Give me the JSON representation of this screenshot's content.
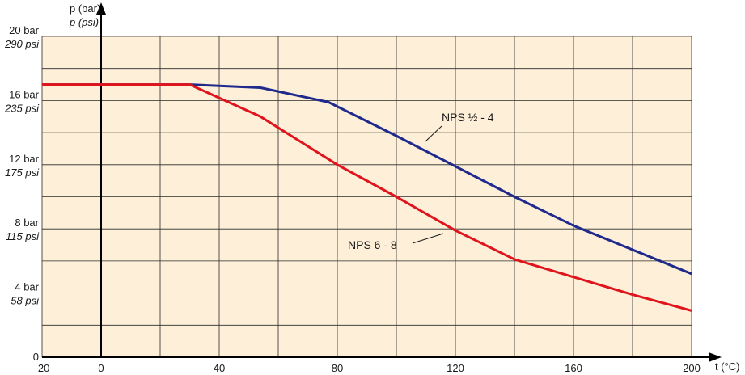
{
  "chart_data": {
    "type": "line",
    "xlabel": "t (°C)",
    "ylabel": "p (bar)",
    "ylabel2": "p (psi)",
    "xlim": [
      -20,
      200
    ],
    "ylim": [
      0,
      20
    ],
    "grid": true,
    "x_grid_step": 20,
    "y_grid_step": 2,
    "x_ticks": [
      {
        "value": -20,
        "label": "-20"
      },
      {
        "value": 0,
        "label": "0"
      },
      {
        "value": 40,
        "label": "40"
      },
      {
        "value": 80,
        "label": "80"
      },
      {
        "value": 120,
        "label": "120"
      },
      {
        "value": 160,
        "label": "160"
      },
      {
        "value": 200,
        "label": "200"
      }
    ],
    "y_ticks": [
      {
        "value": 0,
        "label": "0",
        "label2": ""
      },
      {
        "value": 4,
        "label": "4 bar",
        "label2": "58 psi"
      },
      {
        "value": 8,
        "label": "8 bar",
        "label2": "115 psi"
      },
      {
        "value": 12,
        "label": "12 bar",
        "label2": "175 psi"
      },
      {
        "value": 16,
        "label": "16 bar",
        "label2": "235 psi"
      },
      {
        "value": 20,
        "label": "20 bar",
        "label2": "290 psi"
      }
    ],
    "series": [
      {
        "name": "NPS ½ - 4",
        "color": "#1f2a8c",
        "x": [
          -20,
          30,
          54,
          77,
          100,
          140,
          160,
          200
        ],
        "y": [
          17,
          17,
          16.8,
          15.9,
          13.8,
          10,
          8.2,
          5.2
        ]
      },
      {
        "name": "NPS 6 - 8",
        "color": "#e0141c",
        "x": [
          -20,
          30,
          54,
          80,
          100,
          120,
          140,
          180,
          200
        ],
        "y": [
          17,
          17,
          15,
          12,
          10,
          7.9,
          6.1,
          3.9,
          2.9
        ]
      }
    ],
    "annotations": [
      {
        "text": "NPS ½ - 4",
        "series": 0
      },
      {
        "text": "NPS 6 - 8",
        "series": 1
      }
    ],
    "colors": {
      "background": "#fdefd8",
      "grid": "#2a2a2a",
      "axis": "#000000"
    }
  }
}
